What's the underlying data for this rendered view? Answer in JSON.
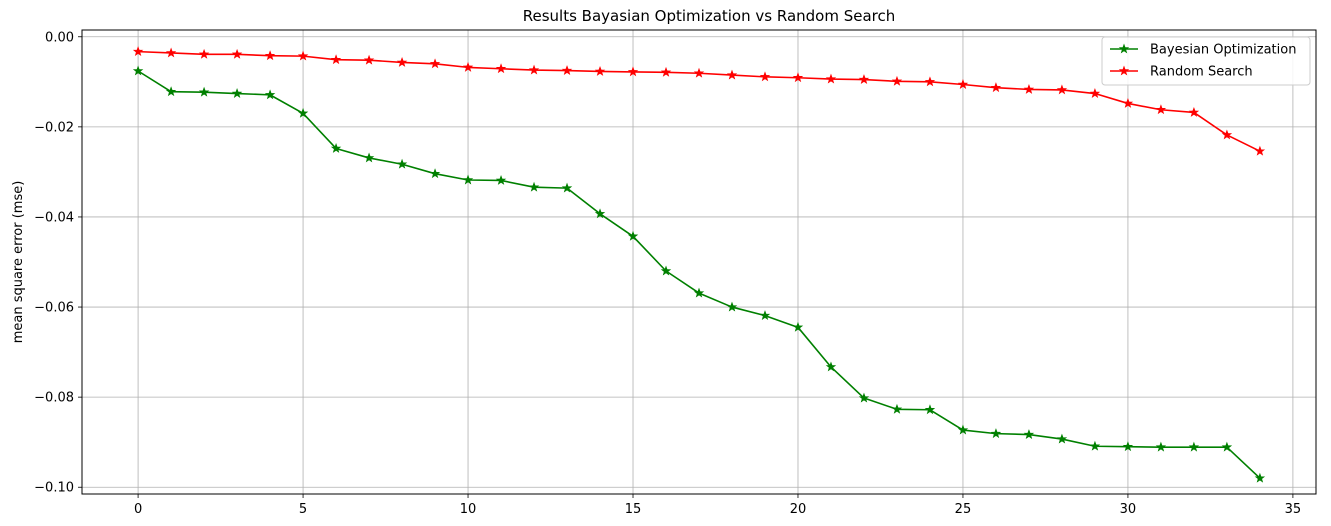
{
  "chart_data": {
    "type": "line",
    "title": "Results Bayasian Optimization vs Random Search",
    "xlabel": "",
    "ylabel": "mean square error (mse)",
    "xlim": [
      -1.7,
      35.7
    ],
    "ylim": [
      -0.1015,
      0.0015
    ],
    "xticks": [
      0,
      5,
      10,
      15,
      20,
      25,
      30,
      35
    ],
    "yticks": [
      0.0,
      -0.02,
      -0.04,
      -0.06,
      -0.08,
      -0.1
    ],
    "ytick_labels": [
      "0.00",
      "−0.02",
      "−0.04",
      "−0.06",
      "−0.08",
      "−0.10"
    ],
    "grid": true,
    "legend_position": "top-right",
    "marker": "star",
    "x": [
      0,
      1,
      2,
      3,
      4,
      5,
      6,
      7,
      8,
      9,
      10,
      11,
      12,
      13,
      14,
      15,
      16,
      17,
      18,
      19,
      20,
      21,
      22,
      23,
      24,
      25,
      26,
      27,
      28,
      29,
      30,
      31,
      32,
      33,
      34
    ],
    "series": [
      {
        "name": "Bayesian Optimization",
        "color": "#008000",
        "values": [
          -0.0076,
          -0.0122,
          -0.0123,
          -0.0126,
          -0.0129,
          -0.017,
          -0.0248,
          -0.0269,
          -0.0283,
          -0.0304,
          -0.0318,
          -0.0319,
          -0.0334,
          -0.0336,
          -0.0393,
          -0.0443,
          -0.052,
          -0.0569,
          -0.06,
          -0.0619,
          -0.0645,
          -0.0733,
          -0.0802,
          -0.0827,
          -0.0828,
          -0.0873,
          -0.0881,
          -0.0883,
          -0.0893,
          -0.0909,
          -0.091,
          -0.0911,
          -0.0911,
          -0.0911,
          -0.098
        ]
      },
      {
        "name": "Random Search",
        "color": "#ff0000",
        "values": [
          -0.0033,
          -0.0036,
          -0.0039,
          -0.0039,
          -0.0042,
          -0.0043,
          -0.0051,
          -0.0052,
          -0.0057,
          -0.006,
          -0.0068,
          -0.0071,
          -0.0074,
          -0.0075,
          -0.0077,
          -0.0078,
          -0.0079,
          -0.0081,
          -0.0085,
          -0.0089,
          -0.0091,
          -0.0094,
          -0.0095,
          -0.0099,
          -0.01,
          -0.0106,
          -0.0113,
          -0.0117,
          -0.0118,
          -0.0126,
          -0.0148,
          -0.0162,
          -0.0168,
          -0.0218,
          -0.0254
        ]
      }
    ]
  }
}
